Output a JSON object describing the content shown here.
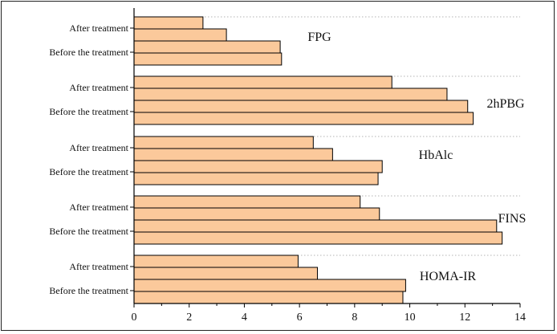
{
  "chart_data": {
    "type": "bar",
    "orientation": "horizontal",
    "xlim": [
      0,
      14
    ],
    "x_ticks": [
      "0",
      "2",
      "4",
      "6",
      "8",
      "10",
      "12",
      "14"
    ],
    "grid": "dotted horizontal group separators",
    "bar_color": "#FBC99B",
    "bar_edge_color": "#000000",
    "groups": [
      {
        "name": "FPG",
        "tick_labels": [
          "After treatment",
          "Before the treatment"
        ],
        "values": [
          2.5,
          3.35,
          5.3,
          5.35
        ]
      },
      {
        "name": "2hPBG",
        "tick_labels": [
          "After treatment",
          "Before the treatment"
        ],
        "values": [
          9.35,
          11.35,
          12.1,
          12.3
        ]
      },
      {
        "name": "HbAlc",
        "tick_labels": [
          "After treatment",
          "Before the treatment"
        ],
        "values": [
          6.5,
          7.2,
          9.0,
          8.85
        ]
      },
      {
        "name": "FINS",
        "tick_labels": [
          "After treatment",
          "Before the treatment"
        ],
        "values": [
          8.2,
          8.9,
          13.15,
          13.35
        ]
      },
      {
        "name": "HOMA-IR",
        "tick_labels": [
          "After treatment",
          "Before the treatment"
        ],
        "values": [
          5.95,
          6.65,
          9.85,
          9.75
        ]
      }
    ]
  }
}
